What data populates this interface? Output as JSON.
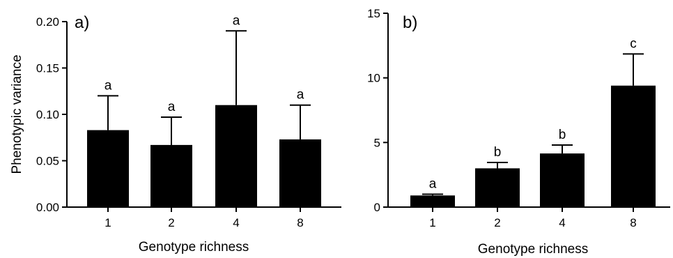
{
  "chart_data": [
    {
      "type": "bar",
      "panel_label": "a)",
      "categories": [
        "1",
        "2",
        "4",
        "8"
      ],
      "values": [
        0.083,
        0.067,
        0.11,
        0.073
      ],
      "error_upper": [
        0.12,
        0.097,
        0.19,
        0.11
      ],
      "significance_letters": [
        "a",
        "a",
        "a",
        "a"
      ],
      "xlabel": "Genotype richness",
      "ylabel": "Phenotypic variance",
      "ylim": [
        0,
        0.2
      ],
      "yticks": [
        0.0,
        0.05,
        0.1,
        0.15,
        0.2
      ],
      "ytick_labels": [
        "0.00",
        "0.05",
        "0.10",
        "0.15",
        "0.20"
      ],
      "bar_color": "#000000",
      "grid": false
    },
    {
      "type": "bar",
      "panel_label": "b)",
      "categories": [
        "1",
        "2",
        "4",
        "8"
      ],
      "values": [
        0.9,
        3.0,
        4.15,
        9.4
      ],
      "error_upper": [
        1.0,
        3.45,
        4.8,
        11.85
      ],
      "significance_letters": [
        "a",
        "b",
        "b",
        "c"
      ],
      "xlabel": "Genotype richness",
      "ylabel": "",
      "ylim": [
        0,
        15
      ],
      "yticks": [
        0,
        5,
        10,
        15
      ],
      "ytick_labels": [
        "0",
        "5",
        "10",
        "15"
      ],
      "bar_color": "#000000",
      "grid": false
    }
  ]
}
